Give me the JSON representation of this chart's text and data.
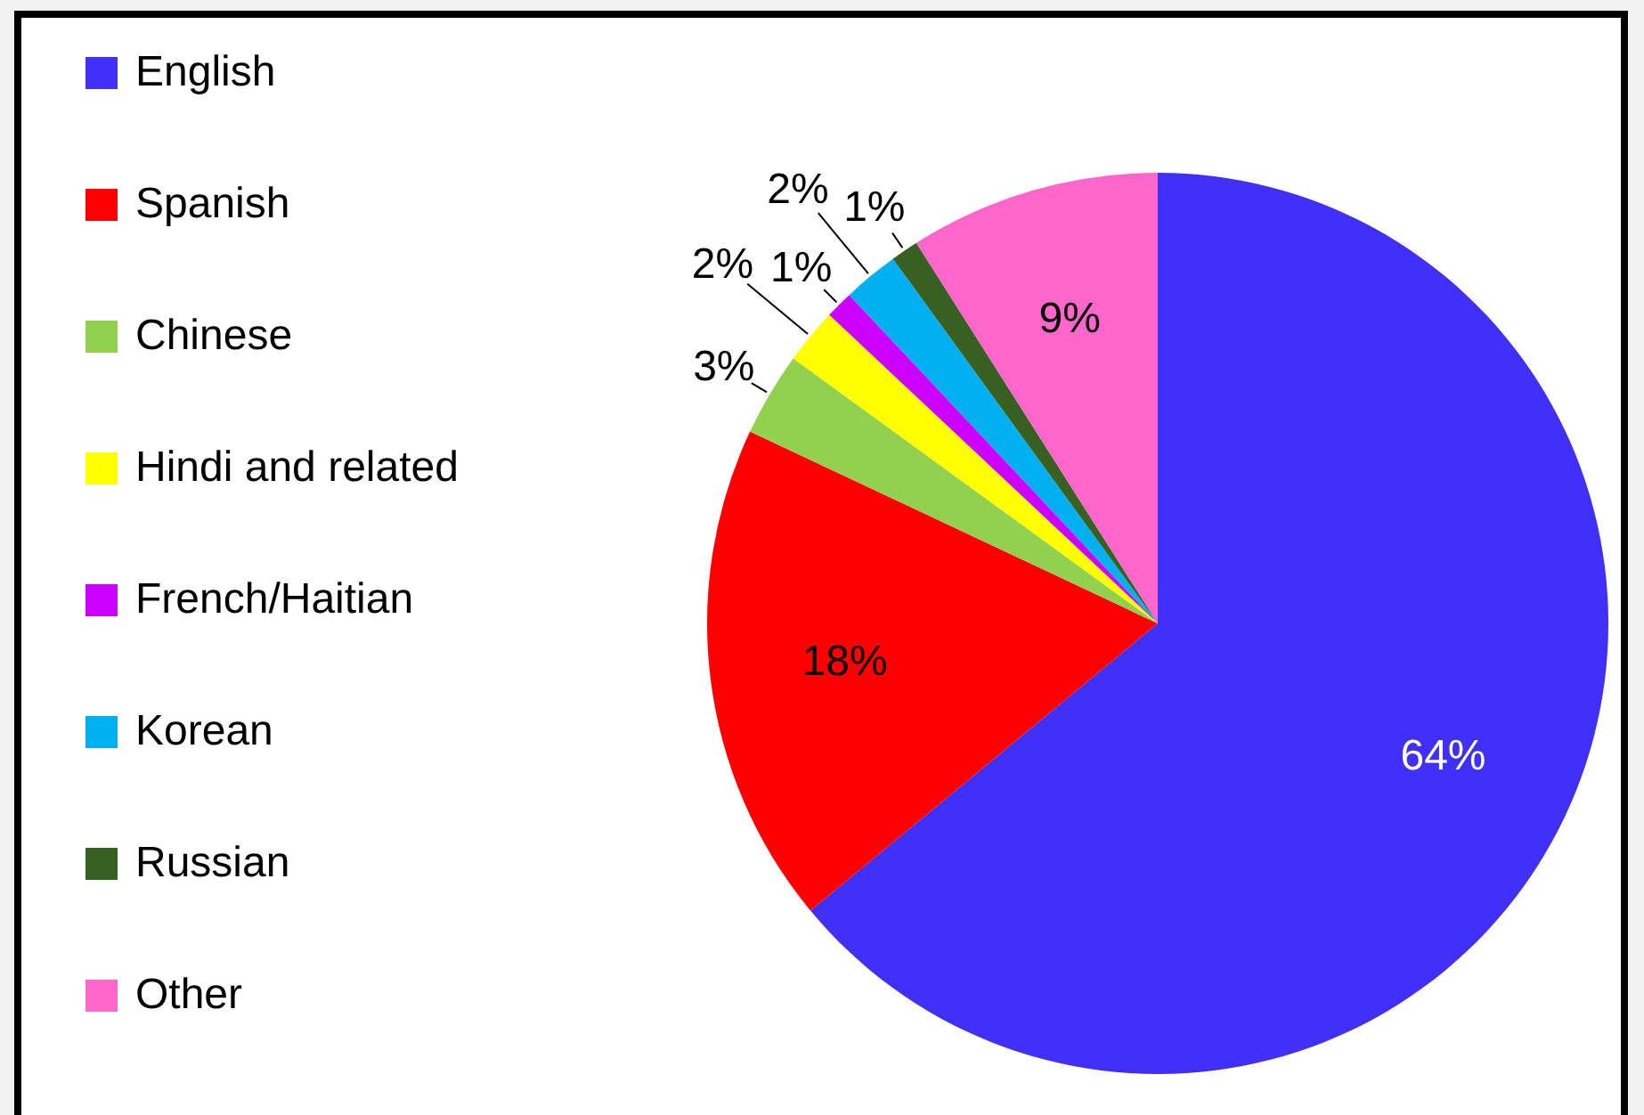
{
  "chart_data": {
    "type": "pie",
    "categories": [
      "English",
      "Spanish",
      "Chinese",
      "Hindi and related",
      "French/Haitian",
      "Korean",
      "Russian",
      "Other"
    ],
    "values": [
      64,
      18,
      3,
      2,
      1,
      2,
      1,
      9
    ],
    "value_labels": [
      "64%",
      "18%",
      "3%",
      "2%",
      "1%",
      "2%",
      "1%",
      "9%"
    ],
    "colors": [
      "#3f2ff7",
      "#ff0000",
      "#92d050",
      "#ffff00",
      "#cc00ff",
      "#00b0f0",
      "#386021",
      "#ff66cc"
    ],
    "legend": "left"
  }
}
